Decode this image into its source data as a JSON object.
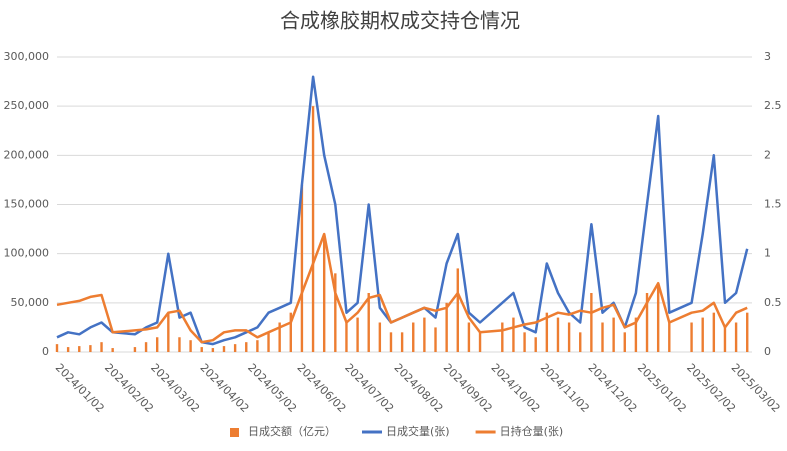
{
  "chart_data": {
    "type": "combo",
    "title": "合成橡胶期权成交持仓情况",
    "x": [
      "2024/01/02",
      "2024/01/09",
      "2024/01/16",
      "2024/01/23",
      "2024/01/30",
      "2024/02/06",
      "2024/02/20",
      "2024/02/27",
      "2024/03/05",
      "2024/03/12",
      "2024/03/19",
      "2024/03/26",
      "2024/04/02",
      "2024/04/09",
      "2024/04/16",
      "2024/04/23",
      "2024/04/30",
      "2024/05/07",
      "2024/05/14",
      "2024/05/21",
      "2024/05/28",
      "2024/06/04",
      "2024/06/11",
      "2024/06/18",
      "2024/06/25",
      "2024/07/02",
      "2024/07/09",
      "2024/07/16",
      "2024/07/23",
      "2024/07/30",
      "2024/08/06",
      "2024/08/13",
      "2024/08/20",
      "2024/08/27",
      "2024/09/03",
      "2024/09/10",
      "2024/09/17",
      "2024/09/24",
      "2024/10/08",
      "2024/10/15",
      "2024/10/22",
      "2024/10/29",
      "2024/11/05",
      "2024/11/12",
      "2024/11/19",
      "2024/11/26",
      "2024/12/03",
      "2024/12/10",
      "2024/12/17",
      "2024/12/24",
      "2024/12/31",
      "2025/01/07",
      "2025/01/14",
      "2025/01/21",
      "2025/02/04",
      "2025/02/11",
      "2025/02/18",
      "2025/02/25",
      "2025/03/04",
      "2025/03/11"
    ],
    "xlim": [
      "2024/01/02",
      "2025/03/14"
    ],
    "xticks": [
      "2024/01/02",
      "2024/02/02",
      "2024/03/02",
      "2024/04/02",
      "2024/05/02",
      "2024/06/02",
      "2024/07/02",
      "2024/08/02",
      "2024/09/02",
      "2024/10/02",
      "2024/11/02",
      "2024/12/02",
      "2025/01/02",
      "2025/02/02",
      "2025/03/02"
    ],
    "series": [
      {
        "name": "日成交额（亿元）",
        "kind": "bar",
        "axis": "y2",
        "color": "#ed7d31",
        "values": [
          0.08,
          0.05,
          0.06,
          0.07,
          0.1,
          0.04,
          0.05,
          0.1,
          0.15,
          0.4,
          0.15,
          0.12,
          0.05,
          0.04,
          0.06,
          0.08,
          0.1,
          0.12,
          0.2,
          0.3,
          0.4,
          1.7,
          2.5,
          1.2,
          0.8,
          0.3,
          0.35,
          0.6,
          0.3,
          0.2,
          0.2,
          0.3,
          0.35,
          0.25,
          0.5,
          0.85,
          0.3,
          0.2,
          0.3,
          0.35,
          0.2,
          0.15,
          0.4,
          0.35,
          0.3,
          0.2,
          0.6,
          0.3,
          0.35,
          0.2,
          0.35,
          0.6,
          0.7,
          0.3,
          0.3,
          0.35,
          0.4,
          0.25,
          0.3,
          0.4
        ]
      },
      {
        "name": "日成交量(张)",
        "kind": "line",
        "color": "#4472c4",
        "values": [
          15000,
          20000,
          18000,
          25000,
          30000,
          20000,
          18000,
          25000,
          30000,
          100000,
          35000,
          40000,
          10000,
          8000,
          12000,
          15000,
          20000,
          25000,
          40000,
          45000,
          50000,
          170000,
          280000,
          200000,
          150000,
          40000,
          50000,
          150000,
          45000,
          30000,
          35000,
          40000,
          45000,
          35000,
          90000,
          120000,
          40000,
          30000,
          50000,
          60000,
          25000,
          20000,
          90000,
          60000,
          40000,
          30000,
          130000,
          40000,
          50000,
          25000,
          60000,
          150000,
          240000,
          40000,
          50000,
          120000,
          200000,
          50000,
          60000,
          105000
        ]
      },
      {
        "name": "日持仓量(张)",
        "kind": "line",
        "color": "#ed7d31",
        "values": [
          48000,
          50000,
          52000,
          56000,
          58000,
          20000,
          22000,
          23000,
          25000,
          40000,
          42000,
          22000,
          10000,
          12000,
          20000,
          22000,
          22000,
          15000,
          20000,
          25000,
          30000,
          60000,
          90000,
          120000,
          60000,
          30000,
          40000,
          55000,
          58000,
          30000,
          35000,
          40000,
          45000,
          42000,
          45000,
          60000,
          35000,
          20000,
          22000,
          25000,
          28000,
          30000,
          35000,
          40000,
          38000,
          42000,
          40000,
          45000,
          48000,
          25000,
          30000,
          50000,
          70000,
          30000,
          40000,
          42000,
          50000,
          25000,
          40000,
          45000
        ]
      }
    ],
    "ylim": [
      0,
      300000
    ],
    "yticks": [
      0,
      {
        "value": 50000,
        "label": "50,000"
      },
      {
        "value": 100000,
        "label": "100,000"
      },
      {
        "value": 150000,
        "label": "150,000"
      },
      {
        "value": 200000,
        "label": "200,000"
      },
      {
        "value": 250000,
        "label": "250,000"
      },
      {
        "value": 300000,
        "label": "300,000"
      }
    ],
    "y2lim": [
      0,
      3
    ],
    "y2ticks": [
      0,
      0.5,
      1,
      1.5,
      2,
      2.5,
      3
    ],
    "grid": true
  }
}
